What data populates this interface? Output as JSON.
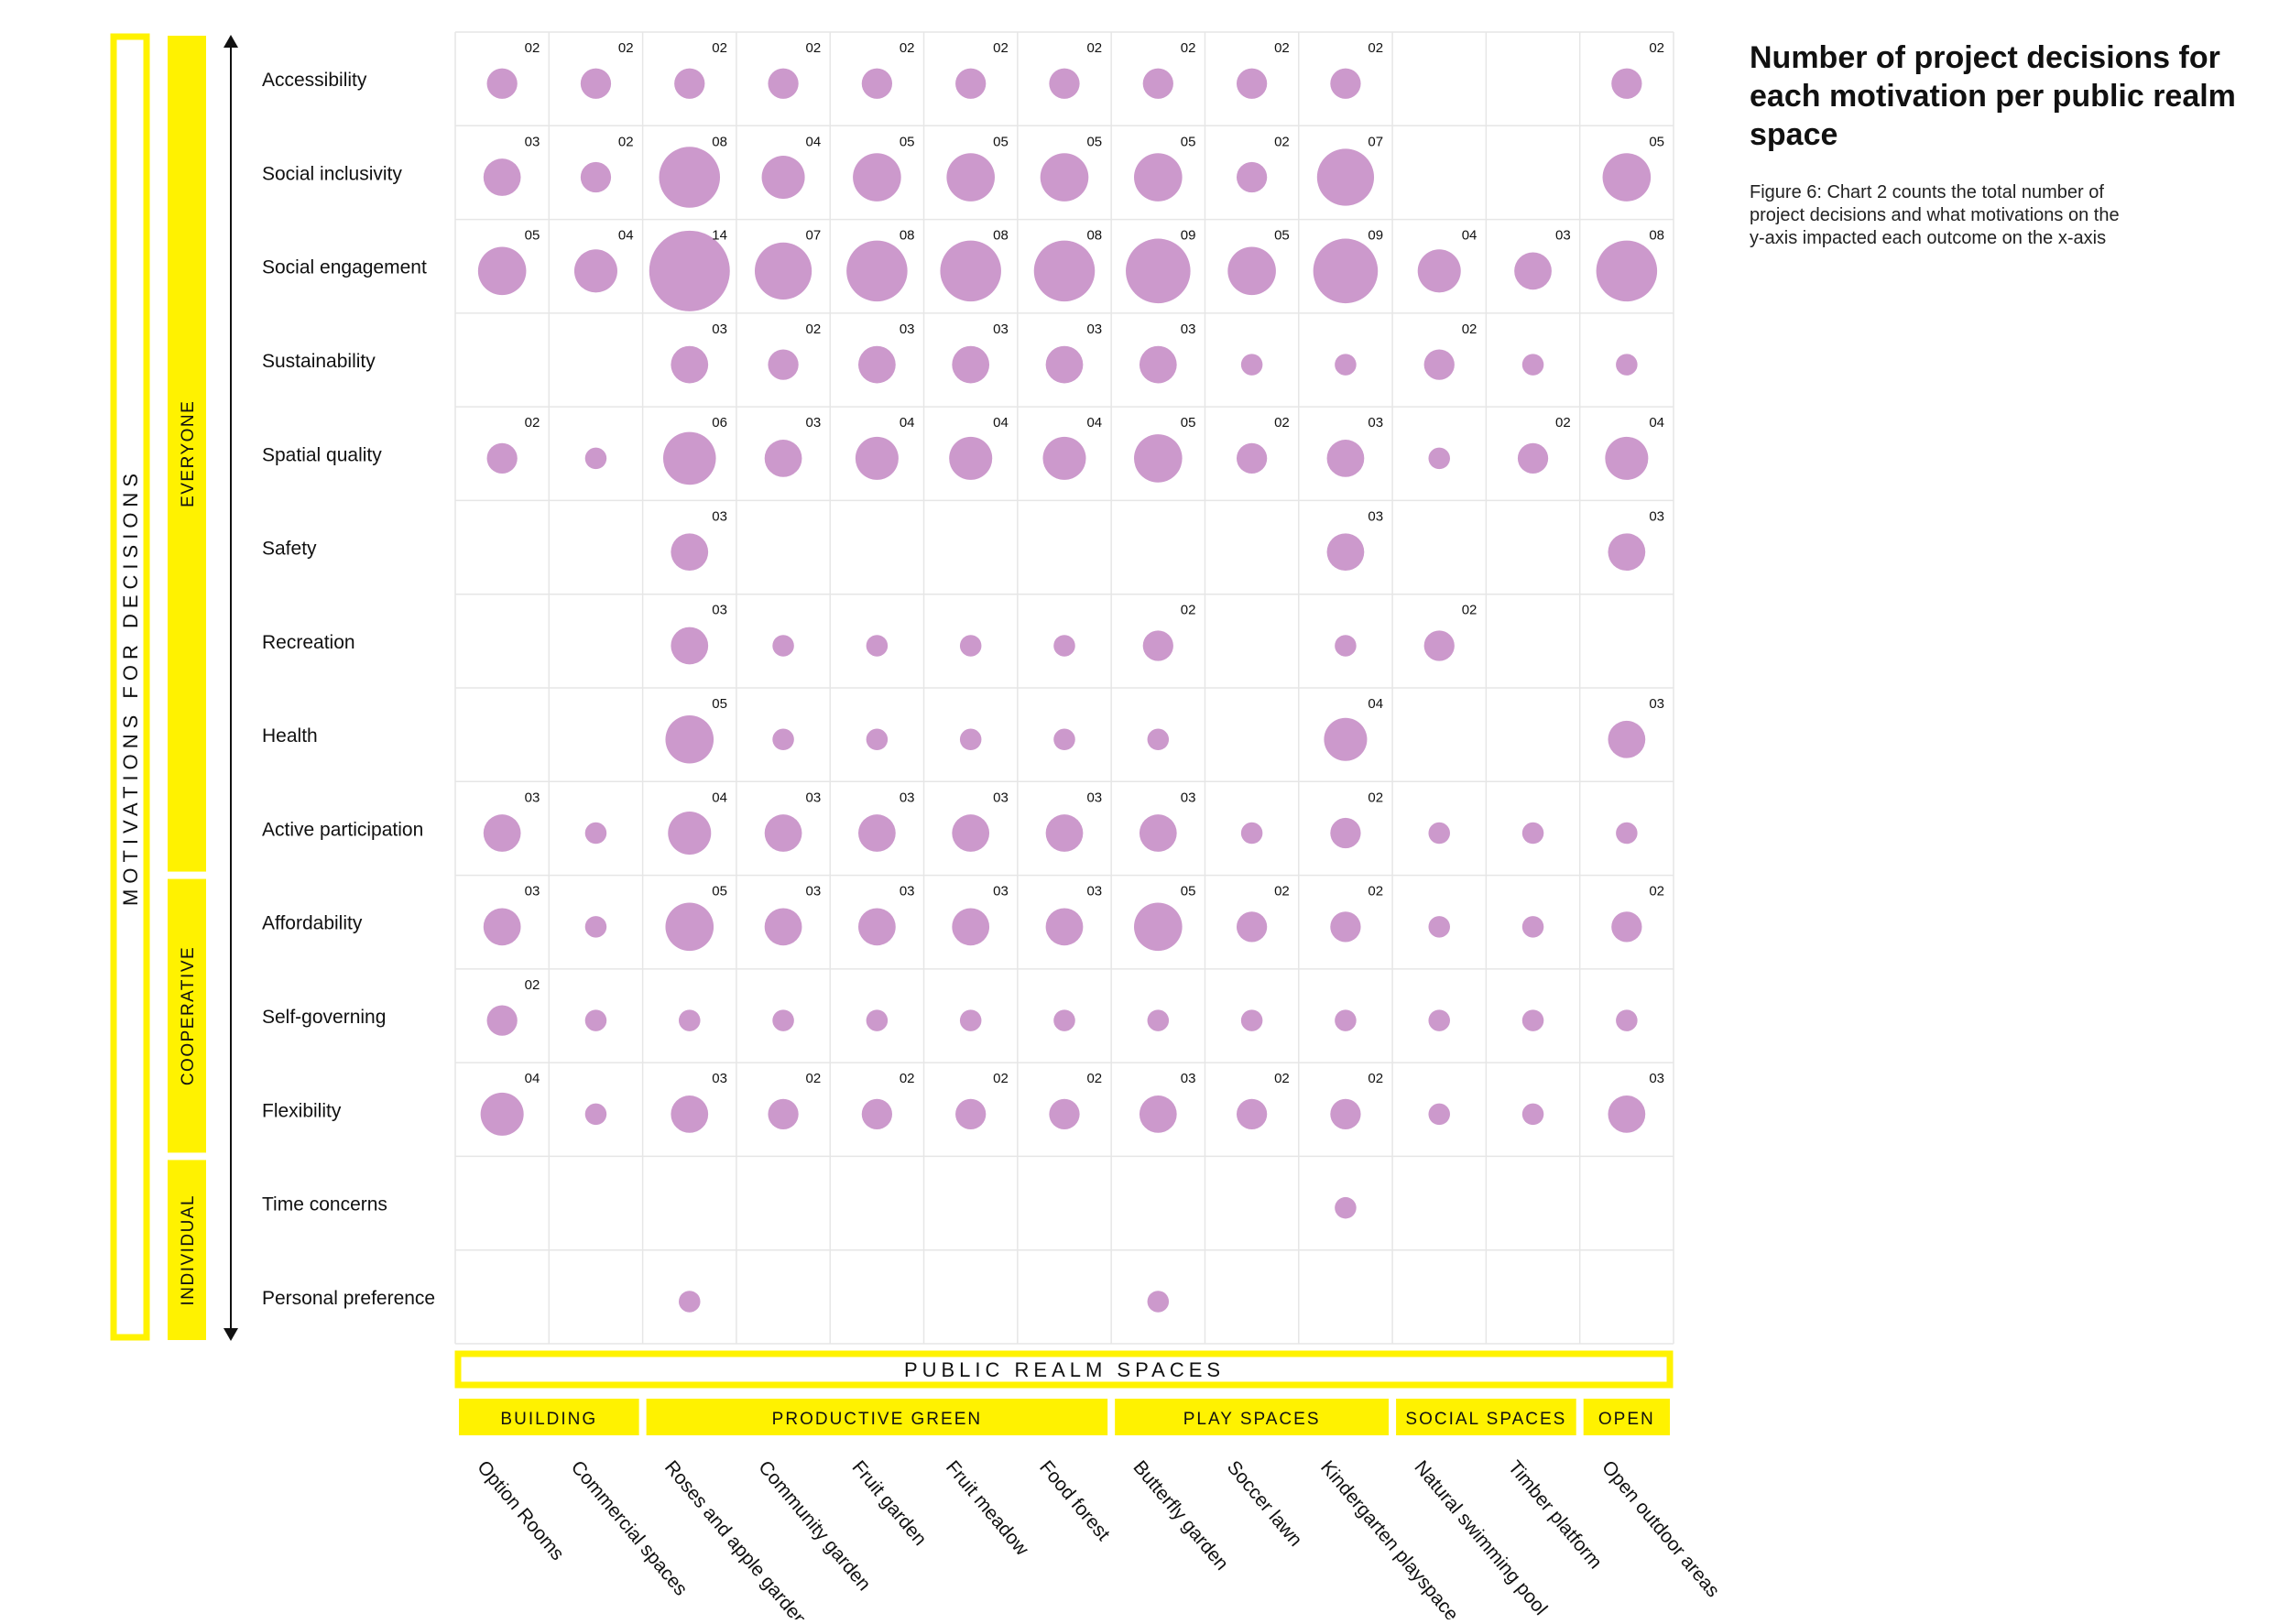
{
  "title": "Number of project decisions for each motivation per public realm space",
  "caption": "Figure 6: Chart 2 counts the total number of project decisions and what motivations on the y-axis impacted each outcome on the x-axis",
  "colors": {
    "bubble": "#cc99cc",
    "highlight": "#fff200",
    "grid": "#e6e6e6",
    "text": "#111111"
  },
  "chart_data": {
    "type": "scatter",
    "y_axis_label": "MOTIVATIONS FOR DECISIONS",
    "x_axis_label": "PUBLIC REALM SPACES",
    "rows": [
      "Accessibility",
      "Social inclusivity",
      "Social engagement",
      "Sustainability",
      "Spatial quality",
      "Safety",
      "Recreation",
      "Health",
      "Active participation",
      "Affordability",
      "Self-governing",
      "Flexibility",
      "Time concerns",
      "Personal preference"
    ],
    "columns": [
      "Option Rooms",
      "Commercial spaces",
      "Roses and apple garden",
      "Community garden",
      "Fruit garden",
      "Fruit meadow",
      "Food forest",
      "Butterfly garden",
      "Soccer lawn",
      "Kindergarten playspace",
      "Natural swimming pool",
      "Timber platform",
      "Open outdoor areas"
    ],
    "row_groups": [
      {
        "label": "EVERYONE",
        "rows": 9
      },
      {
        "label": "COOPERATIVE",
        "rows": 3
      },
      {
        "label": "INDIVIDUAL",
        "rows": 2
      }
    ],
    "column_groups": [
      {
        "label": "BUILDING",
        "columns": 2
      },
      {
        "label": "PRODUCTIVE GREEN",
        "columns": 5
      },
      {
        "label": "PLAY SPACES",
        "columns": 3
      },
      {
        "label": "SOCIAL SPACES",
        "columns": 2
      },
      {
        "label": "OPEN",
        "columns": 1
      }
    ],
    "values": [
      [
        2,
        2,
        2,
        2,
        2,
        2,
        2,
        2,
        2,
        2,
        0,
        0,
        2
      ],
      [
        3,
        2,
        8,
        4,
        5,
        5,
        5,
        5,
        2,
        7,
        0,
        0,
        5
      ],
      [
        5,
        4,
        14,
        7,
        8,
        8,
        8,
        9,
        5,
        9,
        4,
        3,
        8
      ],
      [
        0,
        0,
        3,
        2,
        3,
        3,
        3,
        3,
        1,
        1,
        2,
        1,
        1
      ],
      [
        2,
        1,
        6,
        3,
        4,
        4,
        4,
        5,
        2,
        3,
        1,
        2,
        4
      ],
      [
        0,
        0,
        3,
        0,
        0,
        0,
        0,
        0,
        0,
        3,
        0,
        0,
        3
      ],
      [
        0,
        0,
        3,
        1,
        1,
        1,
        1,
        2,
        0,
        1,
        2,
        0,
        0
      ],
      [
        0,
        0,
        5,
        1,
        1,
        1,
        1,
        1,
        0,
        4,
        0,
        0,
        3
      ],
      [
        3,
        1,
        4,
        3,
        3,
        3,
        3,
        3,
        1,
        2,
        1,
        1,
        1
      ],
      [
        3,
        1,
        5,
        3,
        3,
        3,
        3,
        5,
        2,
        2,
        1,
        1,
        2
      ],
      [
        2,
        1,
        1,
        1,
        1,
        1,
        1,
        1,
        1,
        1,
        1,
        1,
        1
      ],
      [
        4,
        1,
        3,
        2,
        2,
        2,
        2,
        3,
        2,
        2,
        1,
        1,
        3
      ],
      [
        0,
        0,
        0,
        0,
        0,
        0,
        0,
        0,
        0,
        1,
        0,
        0,
        0
      ],
      [
        0,
        0,
        1,
        0,
        0,
        0,
        0,
        1,
        0,
        0,
        0,
        0,
        0
      ]
    ],
    "labels": [
      [
        "02",
        "02",
        "02",
        "02",
        "02",
        "02",
        "02",
        "02",
        "02",
        "02",
        "",
        "",
        "02"
      ],
      [
        "03",
        "02",
        "08",
        "04",
        "05",
        "05",
        "05",
        "05",
        "02",
        "07",
        "",
        "",
        "05"
      ],
      [
        "05",
        "04",
        "14",
        "07",
        "08",
        "08",
        "08",
        "09",
        "05",
        "09",
        "04",
        "03",
        "08"
      ],
      [
        "",
        "",
        "03",
        "02",
        "03",
        "03",
        "03",
        "03",
        "",
        "",
        "02",
        "",
        ""
      ],
      [
        "02",
        "",
        "06",
        "03",
        "04",
        "04",
        "04",
        "05",
        "02",
        "03",
        "",
        "02",
        "04"
      ],
      [
        "",
        "",
        "03",
        "",
        "",
        "",
        "",
        "",
        "",
        "03",
        "",
        "",
        "03"
      ],
      [
        "",
        "",
        "03",
        "",
        "",
        "",
        "",
        "02",
        "",
        "",
        "02",
        "",
        ""
      ],
      [
        "",
        "",
        "05",
        "",
        "",
        "",
        "",
        "",
        "",
        "04",
        "",
        "",
        "03"
      ],
      [
        "03",
        "",
        "04",
        "03",
        "03",
        "03",
        "03",
        "03",
        "",
        "02",
        "",
        "",
        ""
      ],
      [
        "03",
        "",
        "05",
        "03",
        "03",
        "03",
        "03",
        "05",
        "02",
        "02",
        "",
        "",
        "02"
      ],
      [
        "02",
        "",
        "",
        "",
        "",
        "",
        "",
        "",
        "",
        "",
        "",
        "",
        ""
      ],
      [
        "04",
        "",
        "03",
        "02",
        "02",
        "02",
        "02",
        "03",
        "02",
        "02",
        "",
        "",
        "03"
      ],
      [
        "",
        "",
        "",
        "",
        "",
        "",
        "",
        "",
        "",
        "",
        "",
        "",
        ""
      ],
      [
        "",
        "",
        "",
        "",
        "",
        "",
        "",
        "",
        "",
        "",
        "",
        "",
        ""
      ]
    ]
  }
}
